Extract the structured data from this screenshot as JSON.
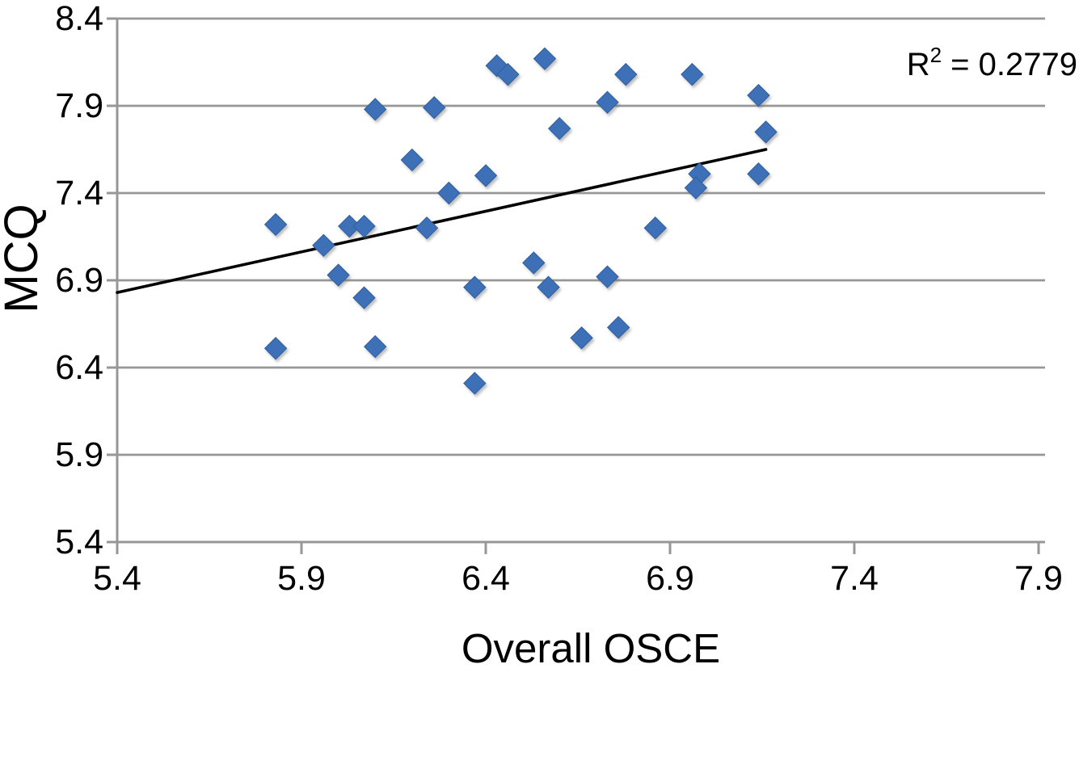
{
  "chart_data": {
    "type": "scatter",
    "title": "",
    "xlabel": "Overall OSCE",
    "ylabel": "MCQ",
    "annotation": {
      "base": "R",
      "superscript": "2",
      "rest": " = 0.2779"
    },
    "xlim": [
      5.4,
      7.9
    ],
    "ylim": [
      5.4,
      8.4
    ],
    "xticks": [
      5.4,
      5.9,
      6.4,
      6.9,
      7.4,
      7.9
    ],
    "yticks": [
      8.4,
      7.9,
      7.4,
      6.9,
      6.4,
      5.9,
      5.4
    ],
    "tick_decimals": 1,
    "grid": "horizontal",
    "legend_position": "none",
    "marker": "diamond",
    "colors": {
      "marker_fill": "#3C70B7",
      "marker_edge": "#2D5E9E",
      "grid": "#979797",
      "axis": "#979797",
      "trendline": "#000000",
      "text": "#000000"
    },
    "trendline": {
      "x_start": 5.4,
      "y_start": 6.83,
      "x_end": 7.16,
      "y_end": 7.65
    },
    "points": [
      [
        6.43,
        8.13
      ],
      [
        6.46,
        8.08
      ],
      [
        6.56,
        8.17
      ],
      [
        6.78,
        8.08
      ],
      [
        6.96,
        8.08
      ],
      [
        7.14,
        7.96
      ],
      [
        6.1,
        7.88
      ],
      [
        6.26,
        7.89
      ],
      [
        6.73,
        7.92
      ],
      [
        6.6,
        7.77
      ],
      [
        7.16,
        7.75
      ],
      [
        6.2,
        7.59
      ],
      [
        6.4,
        7.5
      ],
      [
        6.3,
        7.4
      ],
      [
        6.98,
        7.51
      ],
      [
        6.97,
        7.43
      ],
      [
        7.14,
        7.51
      ],
      [
        5.83,
        7.22
      ],
      [
        6.03,
        7.21
      ],
      [
        6.07,
        7.21
      ],
      [
        5.96,
        7.1
      ],
      [
        6.24,
        7.2
      ],
      [
        6.86,
        7.2
      ],
      [
        6.0,
        6.93
      ],
      [
        6.07,
        6.8
      ],
      [
        6.37,
        6.86
      ],
      [
        6.53,
        7.0
      ],
      [
        6.57,
        6.86
      ],
      [
        6.73,
        6.92
      ],
      [
        5.83,
        6.51
      ],
      [
        6.1,
        6.52
      ],
      [
        6.66,
        6.57
      ],
      [
        6.76,
        6.63
      ],
      [
        6.37,
        6.31
      ]
    ]
  }
}
